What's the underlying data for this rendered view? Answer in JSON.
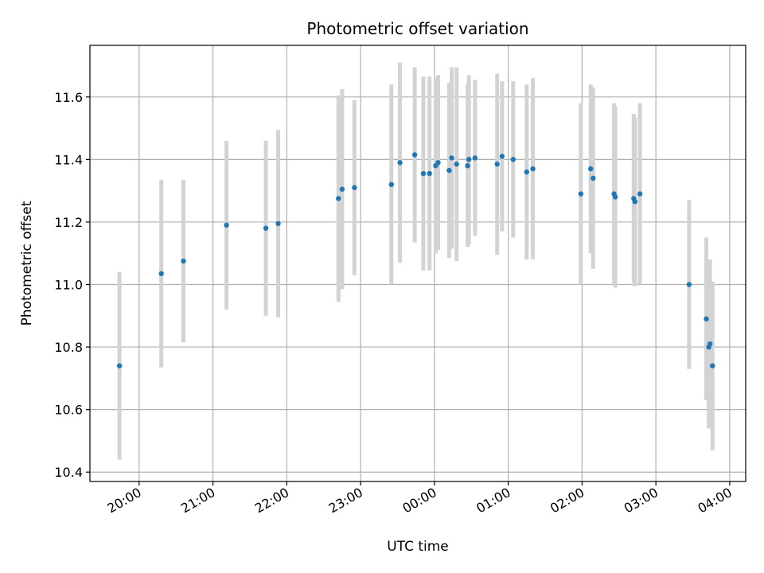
{
  "chart_data": {
    "type": "scatter",
    "title": "Photometric offset variation",
    "xlabel": "UTC time",
    "ylabel": "Photometric offset",
    "x_ticks": [
      "20:00",
      "21:00",
      "22:00",
      "23:00",
      "00:00",
      "01:00",
      "02:00",
      "03:00",
      "04:00"
    ],
    "y_ticks": [
      "10.4",
      "10.6",
      "10.8",
      "11.0",
      "11.2",
      "11.4",
      "11.6"
    ],
    "y_tick_values": [
      10.4,
      10.6,
      10.8,
      11.0,
      11.2,
      11.4,
      11.6
    ],
    "xlim": [
      "19:20",
      "04:13"
    ],
    "ylim": [
      10.37,
      11.765
    ],
    "grid": true,
    "marker_color": "#1f77b4",
    "errorbar_color": "#d3d3d3",
    "points": [
      {
        "t": "19:44",
        "y": 10.74,
        "yerr": 0.3
      },
      {
        "t": "20:18",
        "y": 11.035,
        "yerr": 0.3
      },
      {
        "t": "20:36",
        "y": 11.075,
        "yerr": 0.26
      },
      {
        "t": "21:11",
        "y": 11.19,
        "yerr": 0.27
      },
      {
        "t": "21:43",
        "y": 11.18,
        "yerr": 0.28
      },
      {
        "t": "21:53",
        "y": 11.195,
        "yerr": 0.3
      },
      {
        "t": "22:42",
        "y": 11.275,
        "yerr": 0.33
      },
      {
        "t": "22:45",
        "y": 11.305,
        "yerr": 0.32
      },
      {
        "t": "22:55",
        "y": 11.31,
        "yerr": 0.28
      },
      {
        "t": "23:25",
        "y": 11.32,
        "yerr": 0.32
      },
      {
        "t": "23:32",
        "y": 11.39,
        "yerr": 0.32
      },
      {
        "t": "23:44",
        "y": 11.415,
        "yerr": 0.28
      },
      {
        "t": "23:51",
        "y": 11.355,
        "yerr": 0.31
      },
      {
        "t": "23:56",
        "y": 11.355,
        "yerr": 0.31
      },
      {
        "t": "00:01",
        "y": 11.38,
        "yerr": 0.28
      },
      {
        "t": "00:03",
        "y": 11.39,
        "yerr": 0.28
      },
      {
        "t": "00:12",
        "y": 11.365,
        "yerr": 0.28
      },
      {
        "t": "00:14",
        "y": 11.405,
        "yerr": 0.29
      },
      {
        "t": "00:18",
        "y": 11.385,
        "yerr": 0.31
      },
      {
        "t": "00:27",
        "y": 11.38,
        "yerr": 0.26
      },
      {
        "t": "00:28",
        "y": 11.4,
        "yerr": 0.27
      },
      {
        "t": "00:33",
        "y": 11.405,
        "yerr": 0.25
      },
      {
        "t": "00:51",
        "y": 11.385,
        "yerr": 0.29
      },
      {
        "t": "00:55",
        "y": 11.41,
        "yerr": 0.24
      },
      {
        "t": "01:04",
        "y": 11.4,
        "yerr": 0.25
      },
      {
        "t": "01:15",
        "y": 11.36,
        "yerr": 0.28
      },
      {
        "t": "01:20",
        "y": 11.37,
        "yerr": 0.29
      },
      {
        "t": "01:59",
        "y": 11.29,
        "yerr": 0.29
      },
      {
        "t": "02:07",
        "y": 11.37,
        "yerr": 0.27
      },
      {
        "t": "02:09",
        "y": 11.34,
        "yerr": 0.29
      },
      {
        "t": "02:26",
        "y": 11.29,
        "yerr": 0.29
      },
      {
        "t": "02:27",
        "y": 11.28,
        "yerr": 0.29
      },
      {
        "t": "02:42",
        "y": 11.275,
        "yerr": 0.27
      },
      {
        "t": "02:43",
        "y": 11.265,
        "yerr": 0.27
      },
      {
        "t": "02:47",
        "y": 11.29,
        "yerr": 0.29
      },
      {
        "t": "03:27",
        "y": 11.0,
        "yerr": 0.27
      },
      {
        "t": "03:41",
        "y": 10.89,
        "yerr": 0.26
      },
      {
        "t": "03:43",
        "y": 10.8,
        "yerr": 0.26
      },
      {
        "t": "03:44",
        "y": 10.81,
        "yerr": 0.27
      },
      {
        "t": "03:46",
        "y": 10.74,
        "yerr": 0.27
      }
    ]
  }
}
